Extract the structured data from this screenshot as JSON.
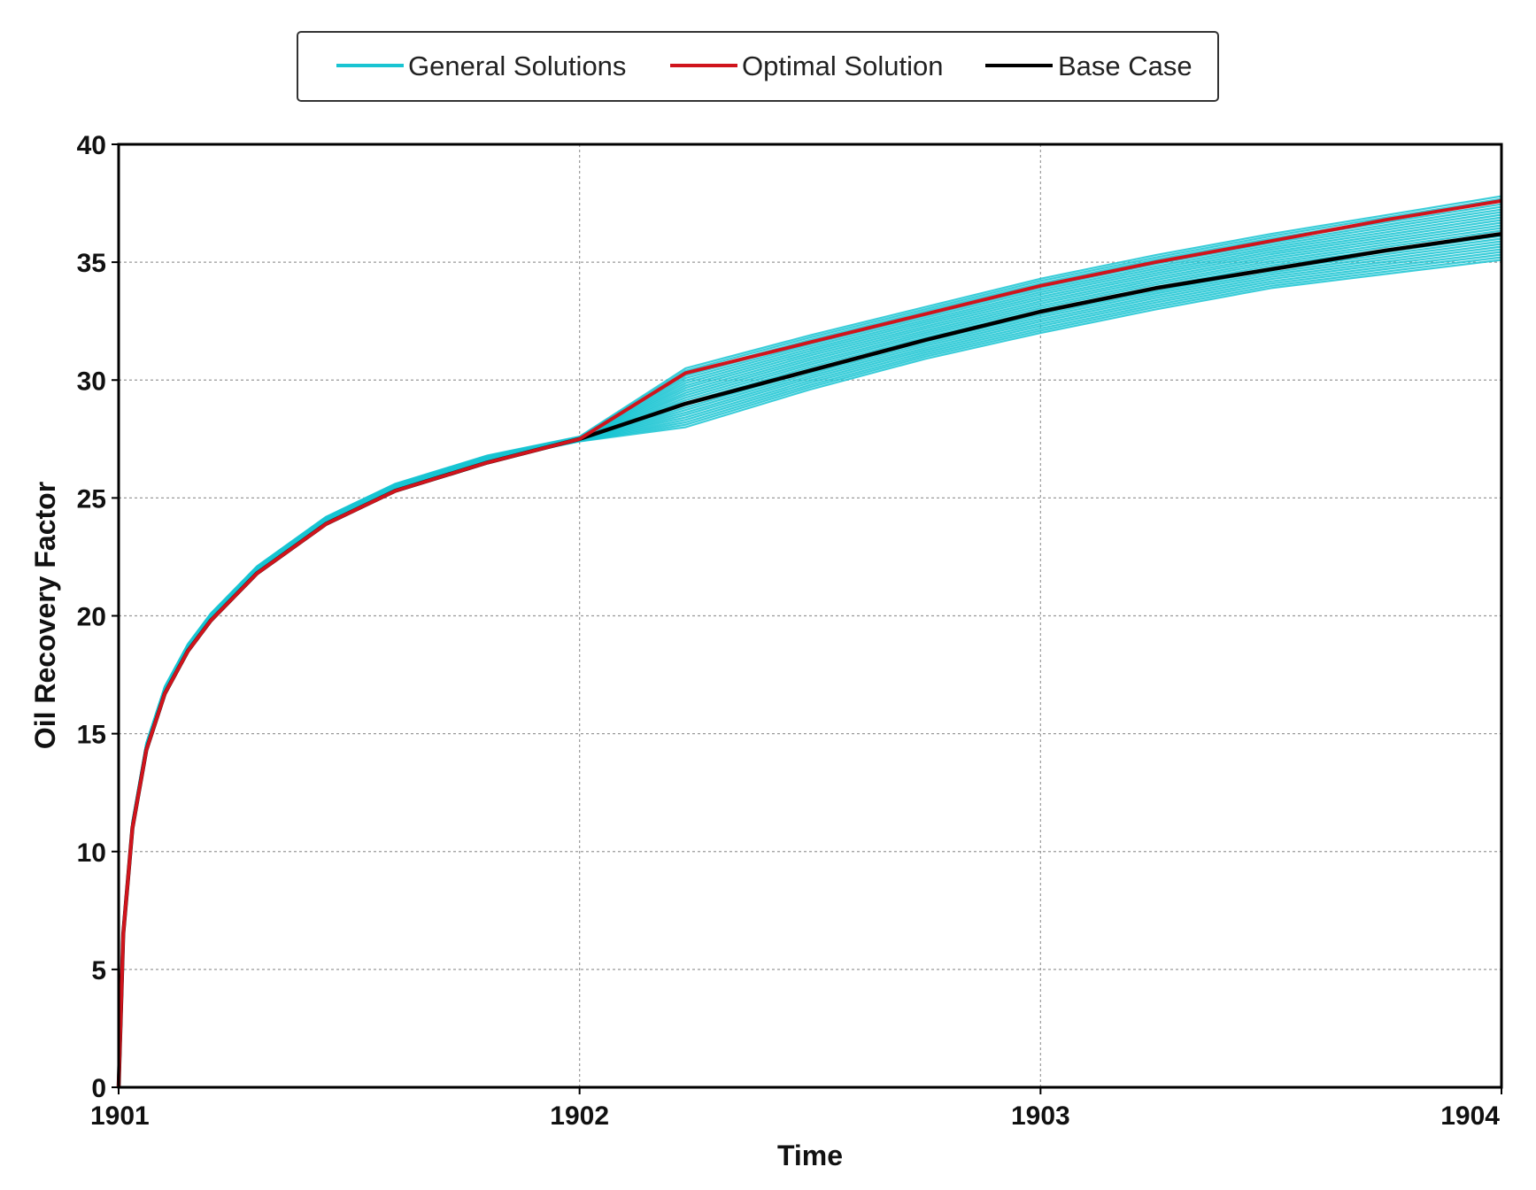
{
  "chart_data": {
    "type": "line",
    "xlabel": "Time",
    "ylabel": "Oil Recovery Factor",
    "xlim": [
      1901,
      1904
    ],
    "ylim": [
      0,
      40
    ],
    "x_ticks": [
      "1901",
      "1902",
      "1903",
      "1904"
    ],
    "y_ticks": [
      "0",
      "5",
      "10",
      "15",
      "20",
      "25",
      "30",
      "35",
      "40"
    ],
    "grid": true,
    "legend_position": "top",
    "series": [
      {
        "name": "Optimal Solution",
        "color": "#d0141c",
        "x": [
          1901.0,
          1901.01,
          1901.03,
          1901.06,
          1901.1,
          1901.15,
          1901.2,
          1901.3,
          1901.45,
          1901.6,
          1901.8,
          1902.0,
          1902.23,
          1902.5,
          1902.75,
          1903.0,
          1903.25,
          1903.5,
          1903.75,
          1904.0
        ],
        "values": [
          0,
          6.5,
          11.0,
          14.3,
          16.7,
          18.5,
          19.8,
          21.8,
          23.9,
          25.3,
          26.5,
          27.5,
          30.3,
          31.6,
          32.8,
          34.0,
          35.0,
          35.9,
          36.8,
          37.6
        ]
      },
      {
        "name": "Base Case",
        "color": "#000000",
        "x": [
          1901.0,
          1901.01,
          1901.03,
          1901.06,
          1901.1,
          1901.15,
          1901.2,
          1901.3,
          1901.45,
          1901.6,
          1901.8,
          1902.0,
          1902.23,
          1902.5,
          1902.75,
          1903.0,
          1903.25,
          1903.5,
          1903.75,
          1904.0
        ],
        "values": [
          0,
          6.5,
          11.0,
          14.3,
          16.7,
          18.5,
          19.8,
          21.8,
          23.9,
          25.3,
          26.5,
          27.5,
          29.0,
          30.4,
          31.7,
          32.9,
          33.9,
          34.7,
          35.5,
          36.2
        ]
      },
      {
        "name": "General Solutions",
        "color": "#19c4d2",
        "x": [
          1901.0,
          1901.01,
          1901.03,
          1901.06,
          1901.1,
          1901.15,
          1901.2,
          1901.3,
          1901.45,
          1901.6,
          1901.8,
          1902.0,
          1902.23,
          1902.5,
          1902.75,
          1903.0,
          1903.25,
          1903.5,
          1903.75,
          1904.0
        ],
        "values_low": [
          0,
          6.6,
          11.1,
          14.4,
          16.8,
          18.6,
          19.9,
          21.9,
          24.0,
          25.4,
          26.6,
          27.4,
          28.0,
          29.6,
          30.9,
          32.0,
          33.0,
          33.9,
          34.5,
          35.1
        ],
        "values_high": [
          0,
          6.9,
          11.3,
          14.6,
          17.0,
          18.8,
          20.1,
          22.1,
          24.2,
          25.6,
          26.8,
          27.6,
          30.5,
          31.9,
          33.1,
          34.3,
          35.3,
          36.2,
          37.0,
          37.8
        ]
      }
    ]
  }
}
